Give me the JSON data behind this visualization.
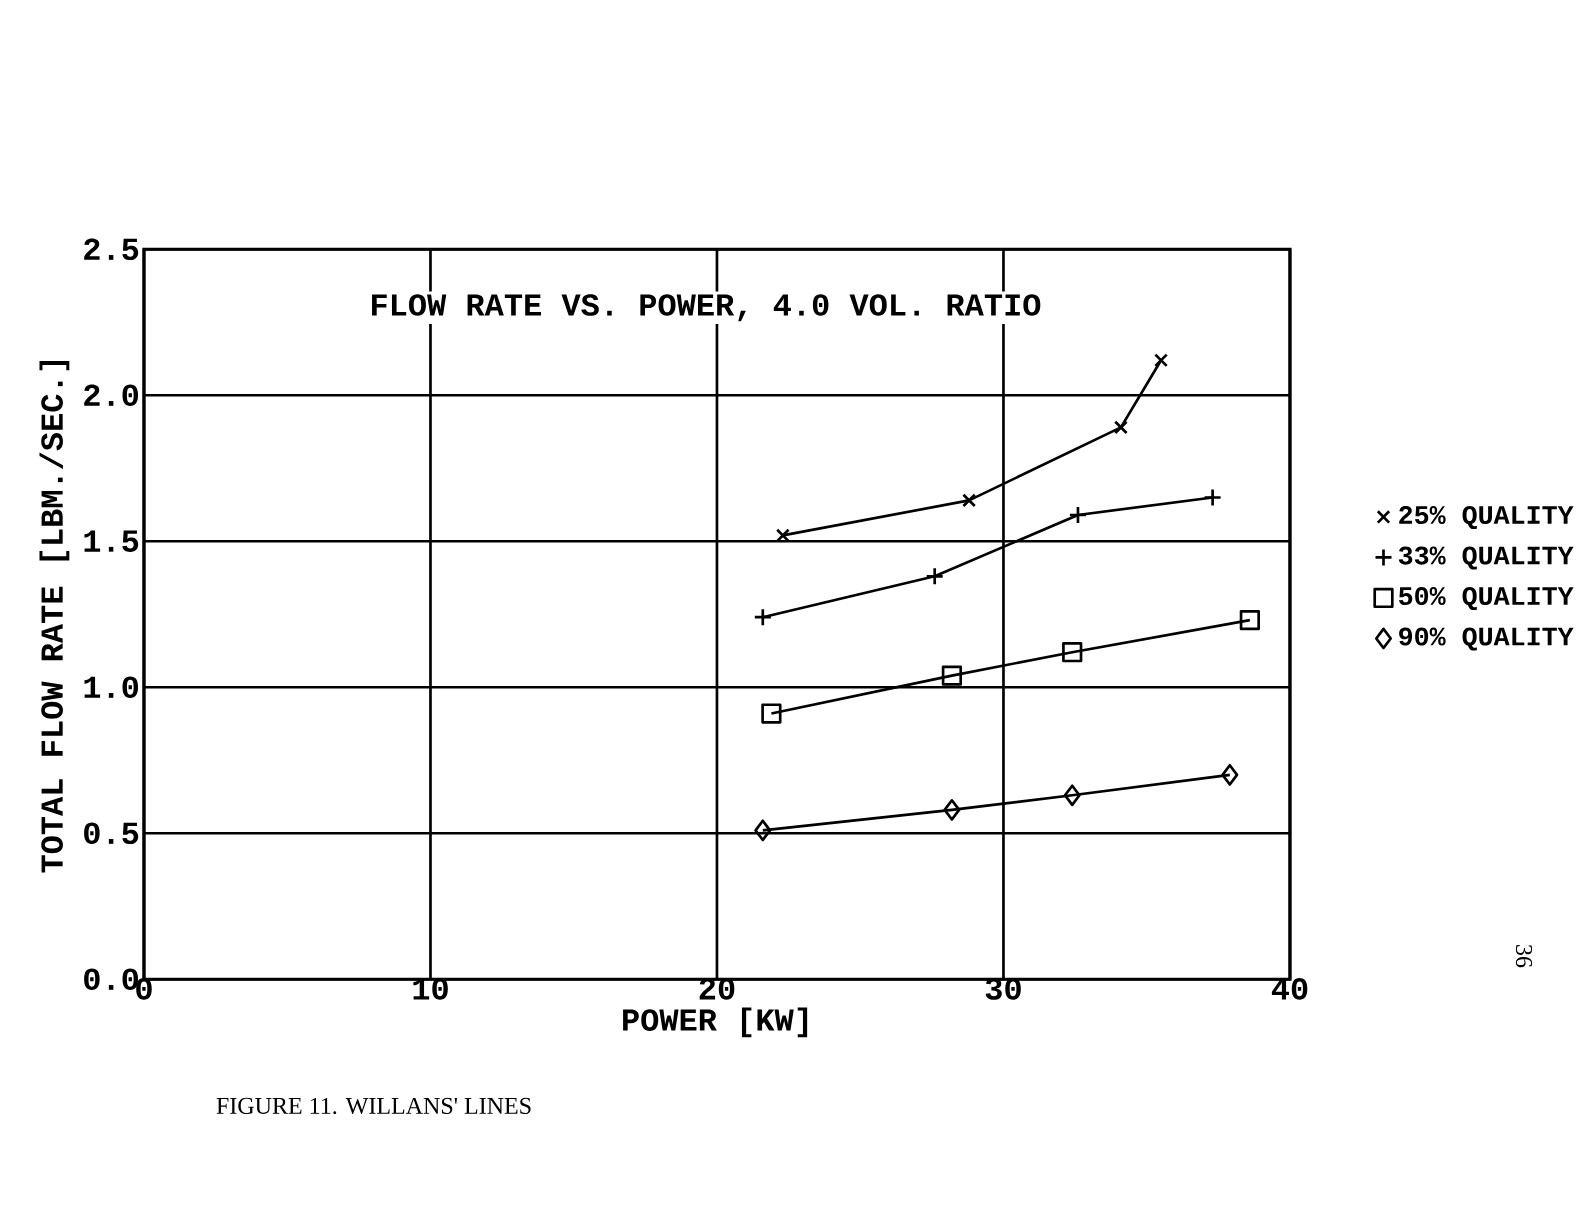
{
  "chart_data": {
    "type": "line",
    "title": "FLOW RATE VS. POWER, 4.0 VOL. RATIO",
    "xlabel": "POWER [KW]",
    "ylabel": "TOTAL FLOW RATE [LBM./SEC.]",
    "xlim": [
      0,
      40
    ],
    "xticks": [
      0,
      10,
      20,
      30,
      40
    ],
    "ylim": [
      0,
      2.5
    ],
    "yticks": [
      {
        "value": 0,
        "label": "0.0"
      },
      {
        "value": 0.5,
        "label": "0.5"
      },
      {
        "value": 1,
        "label": "1.0"
      },
      {
        "value": 1.5,
        "label": "1.5"
      },
      {
        "value": 2,
        "label": "2.0"
      },
      {
        "value": 2.5,
        "label": "2.5"
      }
    ],
    "grid": true,
    "legend": "right",
    "series": [
      {
        "name": "25% QUALITY",
        "color": "#000000",
        "marker": "cross",
        "x": [
          22.3,
          28.8,
          34.1,
          35.5
        ],
        "values": [
          1.52,
          1.64,
          1.89,
          2.12
        ]
      },
      {
        "name": "33% QUALITY",
        "color": "#000000",
        "marker": "plus",
        "x": [
          21.6,
          27.6,
          32.6,
          37.3
        ],
        "values": [
          1.24,
          1.38,
          1.59,
          1.65
        ]
      },
      {
        "name": "50% QUALITY",
        "color": "#000000",
        "marker": "square",
        "x": [
          21.9,
          28.2,
          32.4,
          38.6
        ],
        "values": [
          0.91,
          1.04,
          1.12,
          1.23
        ]
      },
      {
        "name": "90% QUALITY",
        "color": "#000000",
        "marker": "diamond",
        "x": [
          21.6,
          28.2,
          32.4,
          37.9
        ],
        "values": [
          0.51,
          0.58,
          0.63,
          0.7
        ]
      }
    ],
    "annotations": [
      "FIGURE 11. WILLANS' LINES",
      "36"
    ]
  }
}
